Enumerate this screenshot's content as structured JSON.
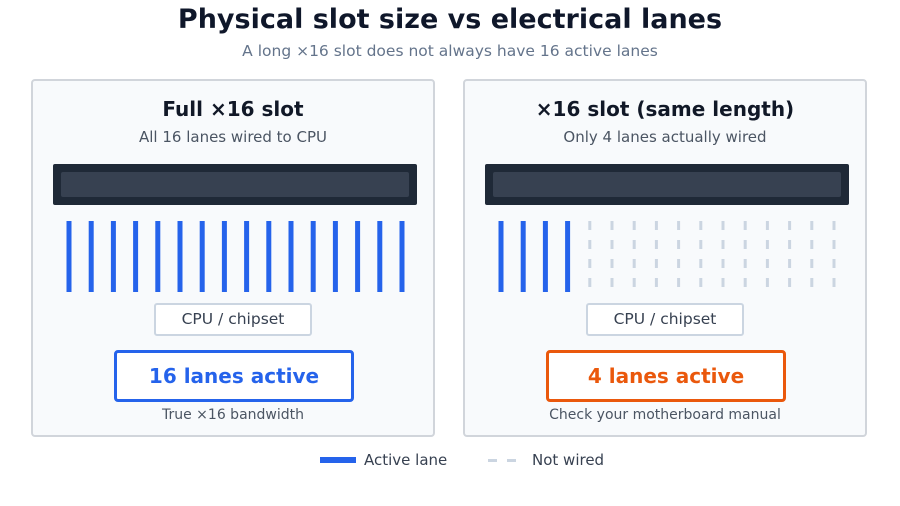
{
  "title": "Physical slot size vs electrical lanes",
  "subtitle": "A long ×16 slot does not always have 16 active lanes",
  "panels": [
    {
      "title": "Full ×16 slot",
      "subtitle": "All 16 lanes wired to CPU",
      "total_lanes": 16,
      "active_lanes": 16,
      "chip_label": "CPU / chipset",
      "badge": "16 lanes active",
      "note": "True ×16 bandwidth",
      "accent": "#2563eb"
    },
    {
      "title": "×16 slot (same length)",
      "subtitle": "Only 4 lanes actually wired",
      "total_lanes": 16,
      "active_lanes": 4,
      "chip_label": "CPU / chipset",
      "badge": "4 lanes active",
      "note": "Check your motherboard manual",
      "accent": "#ea580c"
    }
  ],
  "legend": {
    "active": "Active lane",
    "not_wired": "Not wired"
  },
  "colors": {
    "active_lane": "#2563eb",
    "inactive_lane": "#cbd5e1",
    "slot": "#1f2937"
  }
}
